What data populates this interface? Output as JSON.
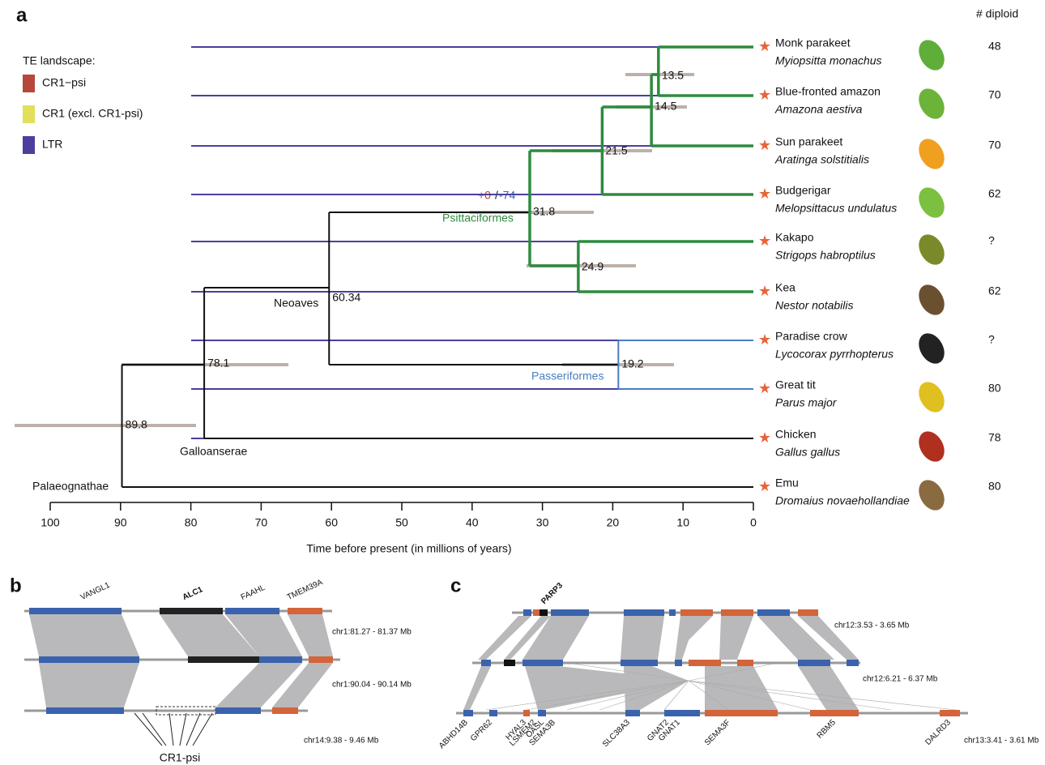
{
  "panel_a": {
    "label": "a",
    "legend_title": "TE landscape:",
    "legend": [
      {
        "name": "CR1−psi",
        "color": "#b5483a"
      },
      {
        "name": "CR1 (excl. CR1-psi)",
        "color": "#e2e05a"
      },
      {
        "name": "LTR",
        "color": "#4b3f9e"
      }
    ],
    "diploid_header": "# diploid",
    "species": [
      {
        "common": "Monk parakeet",
        "latin": "Myiopsitta monachus",
        "diploid": 48
      },
      {
        "common": "Blue-fronted amazon",
        "latin": "Amazona aestiva",
        "diploid": 70
      },
      {
        "common": "Sun parakeet",
        "latin": "Aratinga solstitialis",
        "diploid": 70
      },
      {
        "common": "Budgerigar",
        "latin": "Melopsittacus undulatus",
        "diploid": 62
      },
      {
        "common": "Kakapo",
        "latin": "Strigops habroptilus",
        "diploid": "?"
      },
      {
        "common": "Kea",
        "latin": "Nestor notabilis",
        "diploid": 62
      },
      {
        "common": "Paradise crow",
        "latin": "Lycocorax pyrrhopterus",
        "diploid": "?"
      },
      {
        "common": "Great tit",
        "latin": "Parus major",
        "diploid": 80
      },
      {
        "common": "Chicken",
        "latin": "Gallus gallus",
        "diploid": 78
      },
      {
        "common": "Emu",
        "latin": "Dromaius novaehollandiae",
        "diploid": 80
      }
    ],
    "node_ages": [
      13.5,
      14.5,
      21.5,
      31.8,
      24.9,
      60.34,
      19.2,
      78.1,
      89.8
    ],
    "clades": [
      "Psittaciformes",
      "Passeriformes",
      "Neoaves",
      "Galloanserae",
      "Palaeognathae"
    ],
    "annotation": {
      "gain": "+0",
      "sep": "/",
      "loss": "-74"
    },
    "axis": {
      "ticks": [
        100,
        90,
        80,
        70,
        60,
        50,
        40,
        30,
        20,
        10,
        0
      ],
      "title": "Time before present (in millions of years)"
    }
  },
  "panel_b": {
    "label": "b",
    "genes": [
      "VANGL1",
      "ALC1",
      "FAAHL",
      "TMEM39A"
    ],
    "regions": [
      "chr1:81.27 - 81.37 Mb",
      "chr1:90.04 - 90.14 Mb",
      "chr14:9.38 - 9.46 Mb"
    ],
    "cr1_label": "CR1-psi"
  },
  "panel_c": {
    "label": "c",
    "top_gene": "PARP3",
    "genes": [
      "ABHD14B",
      "GPR62",
      "HYAL3",
      "LSMEM2",
      "OASL",
      "SEMA3B",
      "SLC38A3",
      "GNAT2",
      "GNAT1",
      "SEMA3F",
      "RBM5",
      "DALRD3"
    ],
    "regions": [
      "chr12:3.53 - 3.65 Mb",
      "chr12:6.21 - 6.37 Mb",
      "chr13:3.41 - 3.61 Mb"
    ]
  }
}
